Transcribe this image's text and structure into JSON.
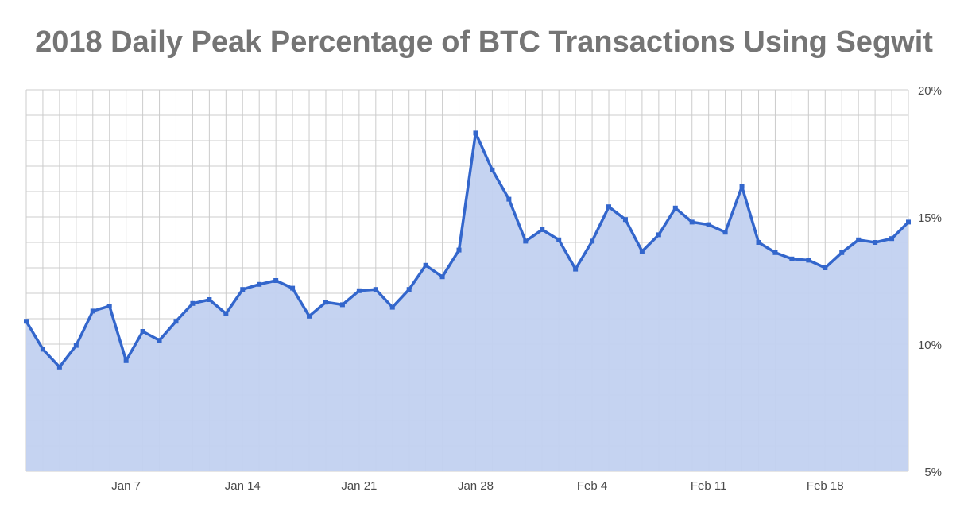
{
  "chart_data": {
    "type": "area",
    "title": "2018 Daily Peak Percentage of BTC Transactions Using Segwit",
    "xlabel": "",
    "ylabel": "",
    "x_start": "Jan 1",
    "x_tick_labels": [
      "Jan 7",
      "Jan 14",
      "Jan 21",
      "Jan 28",
      "Feb 4",
      "Feb 11",
      "Feb 18"
    ],
    "x_tick_days": [
      7,
      14,
      21,
      28,
      35,
      42,
      49
    ],
    "y_tick_labels": [
      "5%",
      "10%",
      "15%",
      "20%"
    ],
    "y_tick_values": [
      5,
      10,
      15,
      20
    ],
    "ylim": [
      5,
      20
    ],
    "grid": true,
    "legend": "none",
    "series": [
      {
        "color": "#3366cc",
        "fill": "#c2d1f0",
        "x": [
          "Jan 1",
          "Jan 2",
          "Jan 3",
          "Jan 4",
          "Jan 5",
          "Jan 6",
          "Jan 7",
          "Jan 8",
          "Jan 9",
          "Jan 10",
          "Jan 11",
          "Jan 12",
          "Jan 13",
          "Jan 14",
          "Jan 15",
          "Jan 16",
          "Jan 17",
          "Jan 18",
          "Jan 19",
          "Jan 20",
          "Jan 21",
          "Jan 22",
          "Jan 23",
          "Jan 24",
          "Jan 25",
          "Jan 26",
          "Jan 27",
          "Jan 28",
          "Jan 29",
          "Jan 30",
          "Jan 31",
          "Feb 1",
          "Feb 2",
          "Feb 3",
          "Feb 4",
          "Feb 5",
          "Feb 6",
          "Feb 7",
          "Feb 8",
          "Feb 9",
          "Feb 10",
          "Feb 11",
          "Feb 12",
          "Feb 13",
          "Feb 14",
          "Feb 15",
          "Feb 16",
          "Feb 17",
          "Feb 18",
          "Feb 19",
          "Feb 20",
          "Feb 21",
          "Feb 22",
          "Feb 23"
        ],
        "values": [
          10.9,
          9.8,
          9.1,
          9.95,
          11.3,
          11.5,
          9.35,
          10.5,
          10.15,
          10.9,
          11.6,
          11.75,
          11.2,
          12.15,
          12.35,
          12.5,
          12.2,
          11.1,
          11.65,
          11.55,
          12.1,
          12.15,
          11.45,
          12.15,
          13.1,
          12.65,
          13.7,
          18.3,
          16.85,
          15.7,
          14.05,
          14.5,
          14.1,
          12.95,
          14.05,
          15.4,
          14.9,
          13.65,
          14.3,
          15.35,
          14.8,
          14.7,
          14.4,
          16.2,
          14.0,
          13.6,
          13.35,
          13.3,
          13.0,
          13.6,
          14.1,
          14.0,
          14.15,
          14.8
        ]
      }
    ]
  }
}
